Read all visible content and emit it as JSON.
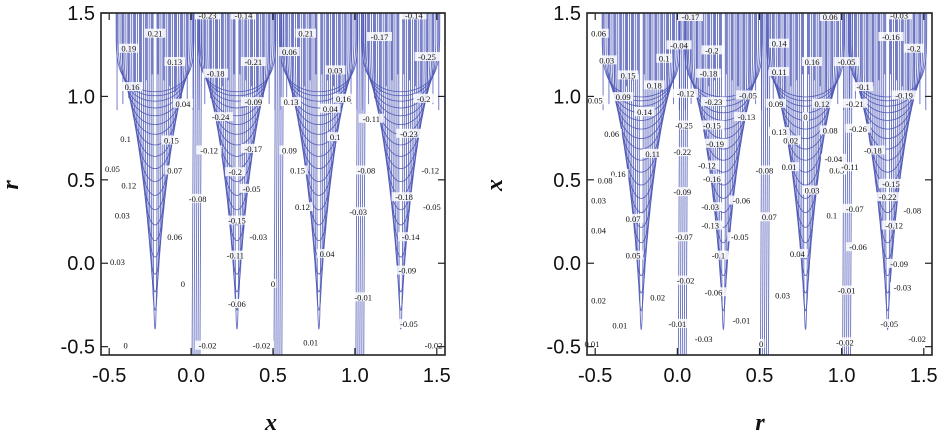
{
  "chart_data": [
    {
      "type": "contour",
      "title": "",
      "xlabel": "x",
      "ylabel": "r",
      "xlim": [
        -0.55,
        1.55
      ],
      "ylim": [
        -0.55,
        1.5
      ],
      "xticks": [
        "-0.5",
        "0.0",
        "0.5",
        "1.0",
        "1.5"
      ],
      "yticks": [
        "-0.5",
        "0.0",
        "0.5",
        "1.0",
        "1.5"
      ],
      "xtick_values": [
        -0.5,
        0.0,
        0.5,
        1.0,
        1.5
      ],
      "ytick_values": [
        -0.5,
        0.0,
        0.5,
        1.0,
        1.5
      ],
      "line_color": "#4a55b5",
      "lobes": [
        {
          "center": -0.22,
          "sign": "positive"
        },
        {
          "center": 0.28,
          "sign": "negative"
        },
        {
          "center": 0.78,
          "sign": "positive"
        },
        {
          "center": 1.28,
          "sign": "negative"
        }
      ],
      "contour_labels": [
        {
          "text": "0.21",
          "x": -0.22,
          "y": 1.37
        },
        {
          "text": "0.19",
          "x": -0.38,
          "y": 1.28
        },
        {
          "text": "0.13",
          "x": -0.1,
          "y": 1.2
        },
        {
          "text": "0.16",
          "x": -0.36,
          "y": 1.05
        },
        {
          "text": "0.04",
          "x": -0.05,
          "y": 0.95
        },
        {
          "text": "0.1",
          "x": -0.4,
          "y": 0.74
        },
        {
          "text": "0.15",
          "x": -0.12,
          "y": 0.73
        },
        {
          "text": "0.07",
          "x": -0.1,
          "y": 0.55
        },
        {
          "text": "0.12",
          "x": -0.38,
          "y": 0.46
        },
        {
          "text": "0.05",
          "x": -0.48,
          "y": 0.56
        },
        {
          "text": "0.03",
          "x": -0.42,
          "y": 0.28
        },
        {
          "text": "0.06",
          "x": -0.1,
          "y": 0.15
        },
        {
          "text": "0.03",
          "x": -0.45,
          "y": 0.0
        },
        {
          "text": "0",
          "x": -0.05,
          "y": -0.13
        },
        {
          "text": "0",
          "x": -0.4,
          "y": -0.5
        },
        {
          "text": "-0.23",
          "x": 0.1,
          "y": 1.48
        },
        {
          "text": "-0.14",
          "x": 0.32,
          "y": 1.48
        },
        {
          "text": "-0.18",
          "x": 0.15,
          "y": 1.13
        },
        {
          "text": "-0.21",
          "x": 0.38,
          "y": 1.2
        },
        {
          "text": "-0.09",
          "x": 0.38,
          "y": 0.96
        },
        {
          "text": "-0.24",
          "x": 0.18,
          "y": 0.87
        },
        {
          "text": "-0.12",
          "x": 0.11,
          "y": 0.67
        },
        {
          "text": "-0.17",
          "x": 0.38,
          "y": 0.68
        },
        {
          "text": "-0.2",
          "x": 0.27,
          "y": 0.54
        },
        {
          "text": "-0.05",
          "x": 0.37,
          "y": 0.44
        },
        {
          "text": "-0.08",
          "x": 0.04,
          "y": 0.38
        },
        {
          "text": "-0.15",
          "x": 0.28,
          "y": 0.25
        },
        {
          "text": "-0.03",
          "x": 0.41,
          "y": 0.15
        },
        {
          "text": "-0.11",
          "x": 0.27,
          "y": 0.04
        },
        {
          "text": "-0.06",
          "x": 0.28,
          "y": -0.25
        },
        {
          "text": "0",
          "x": 0.5,
          "y": -0.13
        },
        {
          "text": "-0.02",
          "x": 0.1,
          "y": -0.5
        },
        {
          "text": "-0.02",
          "x": 0.43,
          "y": -0.5
        },
        {
          "text": "0.06",
          "x": 0.6,
          "y": 1.26
        },
        {
          "text": "0.09",
          "x": 0.6,
          "y": 0.67
        },
        {
          "text": "0.13",
          "x": 0.61,
          "y": 0.96
        },
        {
          "text": "0.21",
          "x": 0.7,
          "y": 1.37
        },
        {
          "text": "0.03",
          "x": 0.88,
          "y": 1.15
        },
        {
          "text": "0.16",
          "x": 0.93,
          "y": 0.98
        },
        {
          "text": "0.04",
          "x": 0.85,
          "y": 0.92
        },
        {
          "text": "0.1",
          "x": 0.88,
          "y": 0.75
        },
        {
          "text": "0.15",
          "x": 0.65,
          "y": 0.55
        },
        {
          "text": "0.12",
          "x": 0.68,
          "y": 0.33
        },
        {
          "text": "0.04",
          "x": 0.83,
          "y": 0.05
        },
        {
          "text": "0.01",
          "x": 0.73,
          "y": -0.48
        },
        {
          "text": "-0.14",
          "x": 1.36,
          "y": 1.48
        },
        {
          "text": "-0.17",
          "x": 1.15,
          "y": 1.35
        },
        {
          "text": "-0.25",
          "x": 1.44,
          "y": 1.23
        },
        {
          "text": "-0.2",
          "x": 1.42,
          "y": 0.98
        },
        {
          "text": "-0.11",
          "x": 1.1,
          "y": 0.86
        },
        {
          "text": "-0.23",
          "x": 1.33,
          "y": 0.77
        },
        {
          "text": "-0.08",
          "x": 1.07,
          "y": 0.55
        },
        {
          "text": "-0.12",
          "x": 1.46,
          "y": 0.55
        },
        {
          "text": "-0.18",
          "x": 1.3,
          "y": 0.39
        },
        {
          "text": "-0.05",
          "x": 1.47,
          "y": 0.33
        },
        {
          "text": "-0.03",
          "x": 1.02,
          "y": 0.3
        },
        {
          "text": "-0.14",
          "x": 1.34,
          "y": 0.15
        },
        {
          "text": "-0.09",
          "x": 1.32,
          "y": -0.05
        },
        {
          "text": "-0.01",
          "x": 1.05,
          "y": -0.21
        },
        {
          "text": "-0.05",
          "x": 1.33,
          "y": -0.37
        },
        {
          "text": "-0.02",
          "x": 1.48,
          "y": -0.5
        }
      ]
    },
    {
      "type": "contour",
      "title": "",
      "xlabel": "r",
      "ylabel": "x",
      "xlim": [
        -0.55,
        1.55
      ],
      "ylim": [
        -0.55,
        1.5
      ],
      "xticks": [
        "-0.5",
        "0.0",
        "0.5",
        "1.0",
        "1.5"
      ],
      "yticks": [
        "-0.5",
        "0.0",
        "0.5",
        "1.0",
        "1.5"
      ],
      "xtick_values": [
        -0.5,
        0.0,
        0.5,
        1.0,
        1.5
      ],
      "ytick_values": [
        -0.5,
        0.0,
        0.5,
        1.0,
        1.5
      ],
      "line_color": "#4a55b5",
      "lobes": [
        {
          "center": -0.22,
          "sign": "positive"
        },
        {
          "center": 0.28,
          "sign": "negative"
        },
        {
          "center": 0.78,
          "sign": "positive"
        },
        {
          "center": 1.28,
          "sign": "negative"
        }
      ],
      "contour_labels": [
        {
          "text": "0.06",
          "x": -0.48,
          "y": 1.37
        },
        {
          "text": "0.03",
          "x": -0.43,
          "y": 1.21
        },
        {
          "text": "0.15",
          "x": -0.3,
          "y": 1.12
        },
        {
          "text": "0.09",
          "x": -0.33,
          "y": 0.99
        },
        {
          "text": "0.05",
          "x": -0.5,
          "y": 0.97
        },
        {
          "text": "0.14",
          "x": -0.2,
          "y": 0.9
        },
        {
          "text": "0.18",
          "x": -0.14,
          "y": 1.06
        },
        {
          "text": "0.11",
          "x": -0.15,
          "y": 0.65
        },
        {
          "text": "0.06",
          "x": -0.4,
          "y": 0.77
        },
        {
          "text": "0.16",
          "x": -0.36,
          "y": 0.53
        },
        {
          "text": "0.08",
          "x": -0.44,
          "y": 0.49
        },
        {
          "text": "0.03",
          "x": -0.48,
          "y": 0.37
        },
        {
          "text": "0.07",
          "x": -0.27,
          "y": 0.26
        },
        {
          "text": "0.04",
          "x": -0.48,
          "y": 0.19
        },
        {
          "text": "0.05",
          "x": -0.27,
          "y": 0.04
        },
        {
          "text": "0.02",
          "x": -0.12,
          "y": -0.21
        },
        {
          "text": "0.02",
          "x": -0.48,
          "y": -0.23
        },
        {
          "text": "0.01",
          "x": -0.35,
          "y": -0.38
        },
        {
          "text": "0.01",
          "x": -0.52,
          "y": -0.49
        },
        {
          "text": "0.1",
          "x": -0.08,
          "y": 1.22
        },
        {
          "text": "-0.17",
          "x": 0.08,
          "y": 1.47
        },
        {
          "text": "-0.04",
          "x": 0.01,
          "y": 1.3
        },
        {
          "text": "-0.2",
          "x": 0.21,
          "y": 1.27
        },
        {
          "text": "-0.18",
          "x": 0.19,
          "y": 1.13
        },
        {
          "text": "-0.12",
          "x": 0.05,
          "y": 1.01
        },
        {
          "text": "-0.23",
          "x": 0.22,
          "y": 0.96
        },
        {
          "text": "-0.15",
          "x": 0.21,
          "y": 0.82
        },
        {
          "text": "-0.25",
          "x": 0.04,
          "y": 0.82
        },
        {
          "text": "-0.19",
          "x": 0.23,
          "y": 0.71
        },
        {
          "text": "-0.22",
          "x": 0.03,
          "y": 0.66
        },
        {
          "text": "-0.12",
          "x": 0.18,
          "y": 0.58
        },
        {
          "text": "-0.16",
          "x": 0.21,
          "y": 0.5
        },
        {
          "text": "-0.09",
          "x": 0.03,
          "y": 0.42
        },
        {
          "text": "-0.06",
          "x": 0.39,
          "y": 0.37
        },
        {
          "text": "-0.03",
          "x": 0.2,
          "y": 0.33
        },
        {
          "text": "-0.13",
          "x": 0.2,
          "y": 0.22
        },
        {
          "text": "-0.07",
          "x": 0.04,
          "y": 0.15
        },
        {
          "text": "-0.05",
          "x": 0.38,
          "y": 0.15
        },
        {
          "text": "-0.1",
          "x": 0.25,
          "y": 0.04
        },
        {
          "text": "-0.02",
          "x": 0.05,
          "y": -0.11
        },
        {
          "text": "-0.06",
          "x": 0.22,
          "y": -0.18
        },
        {
          "text": "-0.01",
          "x": 0.0,
          "y": -0.37
        },
        {
          "text": "-0.01",
          "x": 0.39,
          "y": -0.35
        },
        {
          "text": "-0.03",
          "x": 0.16,
          "y": -0.46
        },
        {
          "text": "0",
          "x": 0.51,
          "y": -0.49
        },
        {
          "text": "0.14",
          "x": 0.62,
          "y": 1.31
        },
        {
          "text": "0.11",
          "x": 0.62,
          "y": 1.14
        },
        {
          "text": "-0.05",
          "x": 0.43,
          "y": 1.0
        },
        {
          "text": "0.09",
          "x": 0.6,
          "y": 0.95
        },
        {
          "text": "-0.13",
          "x": 0.42,
          "y": 0.87
        },
        {
          "text": "0.13",
          "x": 0.62,
          "y": 0.78
        },
        {
          "text": "0",
          "x": 0.78,
          "y": 0.87
        },
        {
          "text": "0.02",
          "x": 0.69,
          "y": 0.73
        },
        {
          "text": "0.01",
          "x": 0.68,
          "y": 0.57
        },
        {
          "text": "-0.08",
          "x": 0.53,
          "y": 0.55
        },
        {
          "text": "0.07",
          "x": 0.56,
          "y": 0.27
        },
        {
          "text": "0.04",
          "x": 0.73,
          "y": 0.05
        },
        {
          "text": "0.03",
          "x": 0.64,
          "y": -0.2
        },
        {
          "text": "0.03",
          "x": 0.82,
          "y": 0.43
        },
        {
          "text": "0.06",
          "x": 0.93,
          "y": 1.47
        },
        {
          "text": "0.16",
          "x": 0.82,
          "y": 1.2
        },
        {
          "text": "0.12",
          "x": 0.88,
          "y": 0.95
        },
        {
          "text": "0.08",
          "x": 0.93,
          "y": 0.79
        },
        {
          "text": "0.05",
          "x": 0.97,
          "y": 0.55
        },
        {
          "text": "0.1",
          "x": 0.94,
          "y": 0.28
        },
        {
          "text": "-0.04",
          "x": 0.95,
          "y": 0.62
        },
        {
          "text": "-0.05",
          "x": 1.03,
          "y": 1.2
        },
        {
          "text": "-0.1",
          "x": 1.13,
          "y": 1.05
        },
        {
          "text": "-0.21",
          "x": 1.08,
          "y": 0.95
        },
        {
          "text": "-0.26",
          "x": 1.1,
          "y": 0.8
        },
        {
          "text": "-0.18",
          "x": 1.19,
          "y": 0.67
        },
        {
          "text": "-0.11",
          "x": 1.05,
          "y": 0.57
        },
        {
          "text": "-0.15",
          "x": 1.3,
          "y": 0.47
        },
        {
          "text": "-0.22",
          "x": 1.28,
          "y": 0.39
        },
        {
          "text": "-0.07",
          "x": 1.08,
          "y": 0.32
        },
        {
          "text": "-0.12",
          "x": 1.32,
          "y": 0.22
        },
        {
          "text": "-0.06",
          "x": 1.1,
          "y": 0.09
        },
        {
          "text": "-0.09",
          "x": 1.35,
          "y": -0.01
        },
        {
          "text": "-0.01",
          "x": 1.03,
          "y": -0.17
        },
        {
          "text": "-0.03",
          "x": 1.37,
          "y": -0.15
        },
        {
          "text": "-0.02",
          "x": 1.02,
          "y": -0.48
        },
        {
          "text": "-0.02",
          "x": 1.46,
          "y": -0.46
        },
        {
          "text": "-0.05",
          "x": 1.29,
          "y": -0.37
        },
        {
          "text": "-0.03",
          "x": 1.35,
          "y": 1.48
        },
        {
          "text": "-0.16",
          "x": 1.3,
          "y": 1.35
        },
        {
          "text": "-0.2",
          "x": 1.44,
          "y": 1.28
        },
        {
          "text": "-0.19",
          "x": 1.38,
          "y": 1.0
        },
        {
          "text": "-0.08",
          "x": 1.43,
          "y": 0.31
        }
      ]
    }
  ]
}
